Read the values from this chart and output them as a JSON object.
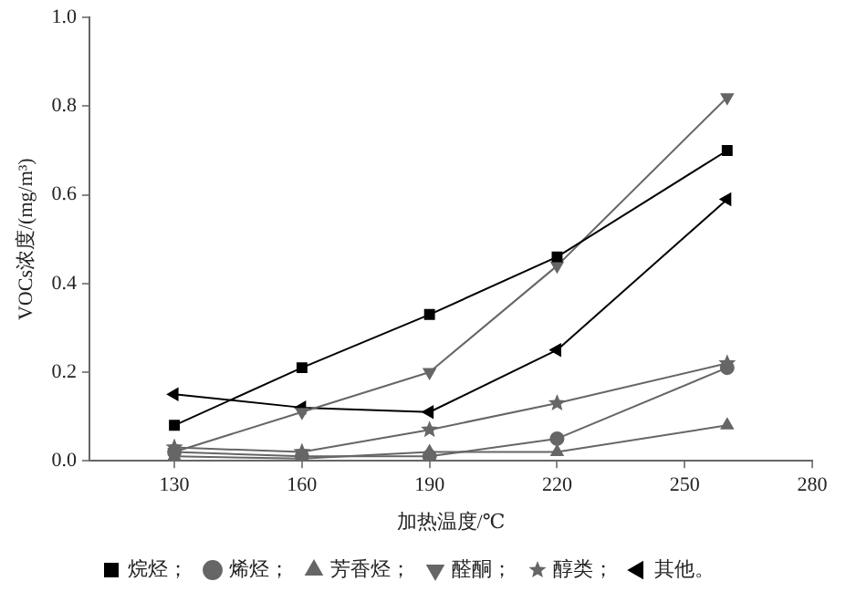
{
  "chart_data": {
    "type": "line",
    "xlabel": "加热温度/℃",
    "ylabel": "VOCs浓度/(mg/m³)",
    "x": [
      130,
      160,
      190,
      220,
      260
    ],
    "xlim": [
      110,
      280
    ],
    "xticks": [
      130,
      160,
      190,
      220,
      250,
      280
    ],
    "ylim": [
      0,
      1
    ],
    "yticks": [
      {
        "value": 0,
        "label": "0.0"
      },
      {
        "value": 0.2,
        "label": "0.2"
      },
      {
        "value": 0.4,
        "label": "0.4"
      },
      {
        "value": 0.6,
        "label": "0.6"
      },
      {
        "value": 0.8,
        "label": "0.8"
      },
      {
        "value": 1,
        "label": "1.0"
      }
    ],
    "grid": false,
    "legend": "bottom",
    "series": [
      {
        "name": "烷烃；",
        "color": "#000000",
        "marker": "square",
        "values": [
          0.08,
          0.21,
          0.33,
          0.46,
          0.7
        ]
      },
      {
        "name": "烯烃；",
        "color": "#666666",
        "marker": "circle",
        "values": [
          0.02,
          0.01,
          0.01,
          0.05,
          0.21
        ]
      },
      {
        "name": "芳香烃；",
        "color": "#666666",
        "marker": "triangle",
        "values": [
          0.01,
          0.005,
          0.02,
          0.02,
          0.08
        ]
      },
      {
        "name": "醛酮；",
        "color": "#666666",
        "marker": "triangle-down",
        "values": [
          0.02,
          0.11,
          0.2,
          0.44,
          0.82
        ]
      },
      {
        "name": "醇类；",
        "color": "#666666",
        "marker": "star",
        "values": [
          0.03,
          0.02,
          0.07,
          0.13,
          0.22
        ]
      },
      {
        "name": "其他。",
        "color": "#000000",
        "marker": "triangle-left",
        "values": [
          0.15,
          0.12,
          0.11,
          0.25,
          0.59
        ]
      }
    ]
  }
}
